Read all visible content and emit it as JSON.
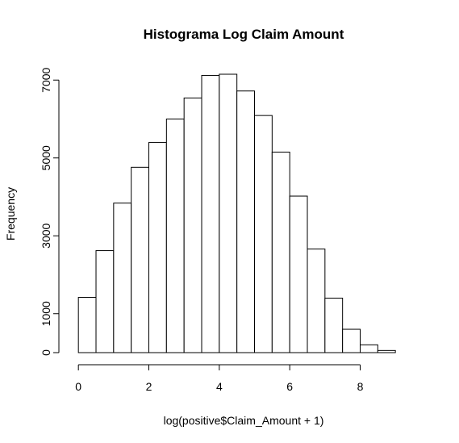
{
  "chart_data": {
    "type": "bar",
    "title": "Histograma Log Claim Amount",
    "xlabel": "log(positive$Claim_Amount + 1)",
    "ylabel": "Frequency",
    "bin_edges": [
      0,
      0.5,
      1,
      1.5,
      2,
      2.5,
      3,
      3.5,
      4,
      4.5,
      5,
      5.5,
      6,
      6.5,
      7,
      7.5,
      8,
      8.5,
      9
    ],
    "values": [
      1420,
      2620,
      3840,
      4760,
      5400,
      6000,
      6540,
      7120,
      7150,
      6720,
      6090,
      5150,
      4020,
      2660,
      1400,
      600,
      200,
      55
    ],
    "x_ticks": [
      0,
      2,
      4,
      6,
      8
    ],
    "y_ticks": [
      0,
      1000,
      3000,
      5000,
      7000
    ],
    "xlim": [
      -0.05,
      9.5
    ],
    "ylim": [
      0,
      7150
    ],
    "grid": false,
    "bar_fill": "#ffffff",
    "bar_stroke": "#000000"
  }
}
